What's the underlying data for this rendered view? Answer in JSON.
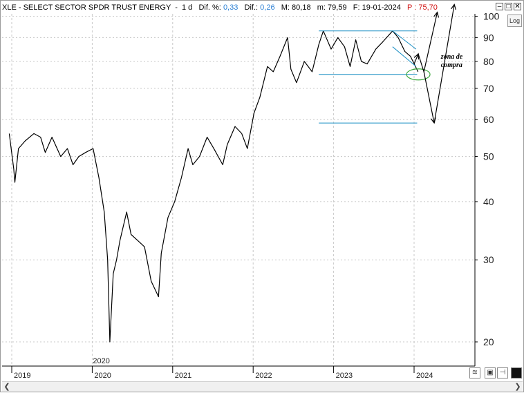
{
  "header": {
    "symbol": "XLE - SELECT SECTOR SPDR TRUST ENERGY",
    "period": "1 d",
    "dif_pct_label": "Dif. %:",
    "dif_pct_value": "0,33",
    "dif_label": "Dif.:",
    "dif_value": "0,26",
    "max_label": "M:",
    "max_value": "80,18",
    "min_label": "m:",
    "min_value": "79,59",
    "date_label": "F:",
    "date_value": "19-01-2024",
    "price_label": "P :",
    "price_value": "75,70"
  },
  "controls": {
    "log_label": "Log",
    "minimize": "–",
    "maximize": "□",
    "close": "✕"
  },
  "colors": {
    "price_line": "#000000",
    "channel": "#1a8fc4",
    "ellipse": "#3aa83a",
    "grid": "#c8c8c8"
  },
  "chart_data": {
    "type": "line",
    "title": "XLE - SELECT SECTOR SPDR TRUST ENERGY",
    "y_scale": "log",
    "ylim": [
      18,
      102
    ],
    "y_ticks": [
      20,
      30,
      40,
      50,
      60,
      70,
      80,
      90,
      100
    ],
    "x_ticks": [
      "2019",
      "2020",
      "2021",
      "2022",
      "2023",
      "2024"
    ],
    "x_range": [
      "2019-01",
      "2024-08"
    ],
    "series": [
      {
        "values": [
          {
            "x": "2018-12-20",
            "y": 56
          },
          {
            "x": "2019-01-10",
            "y": 47
          },
          {
            "x": "2019-01-15",
            "y": 44
          },
          {
            "x": "2019-02-01",
            "y": 52
          },
          {
            "x": "2019-03-01",
            "y": 54
          },
          {
            "x": "2019-04-10",
            "y": 56
          },
          {
            "x": "2019-05-10",
            "y": 55
          },
          {
            "x": "2019-06-01",
            "y": 51
          },
          {
            "x": "2019-07-01",
            "y": 55
          },
          {
            "x": "2019-08-10",
            "y": 50
          },
          {
            "x": "2019-09-10",
            "y": 52
          },
          {
            "x": "2019-10-05",
            "y": 48
          },
          {
            "x": "2019-11-01",
            "y": 50
          },
          {
            "x": "2019-12-01",
            "y": 51
          },
          {
            "x": "2020-01-05",
            "y": 52
          },
          {
            "x": "2020-02-01",
            "y": 45
          },
          {
            "x": "2020-02-25",
            "y": 38
          },
          {
            "x": "2020-03-10",
            "y": 30
          },
          {
            "x": "2020-03-20",
            "y": 20
          },
          {
            "x": "2020-04-05",
            "y": 28
          },
          {
            "x": "2020-04-20",
            "y": 30
          },
          {
            "x": "2020-05-05",
            "y": 33
          },
          {
            "x": "2020-06-05",
            "y": 38
          },
          {
            "x": "2020-06-25",
            "y": 34
          },
          {
            "x": "2020-07-25",
            "y": 33
          },
          {
            "x": "2020-08-25",
            "y": 32
          },
          {
            "x": "2020-09-25",
            "y": 27
          },
          {
            "x": "2020-10-28",
            "y": 25
          },
          {
            "x": "2020-11-10",
            "y": 31
          },
          {
            "x": "2020-12-10",
            "y": 37
          },
          {
            "x": "2021-01-10",
            "y": 40
          },
          {
            "x": "2021-02-10",
            "y": 45
          },
          {
            "x": "2021-03-10",
            "y": 52
          },
          {
            "x": "2021-04-01",
            "y": 48
          },
          {
            "x": "2021-05-01",
            "y": 50
          },
          {
            "x": "2021-06-05",
            "y": 55
          },
          {
            "x": "2021-07-05",
            "y": 52
          },
          {
            "x": "2021-08-15",
            "y": 48
          },
          {
            "x": "2021-09-05",
            "y": 53
          },
          {
            "x": "2021-10-10",
            "y": 58
          },
          {
            "x": "2021-11-10",
            "y": 56
          },
          {
            "x": "2021-12-05",
            "y": 52
          },
          {
            "x": "2022-01-05",
            "y": 62
          },
          {
            "x": "2022-02-01",
            "y": 67
          },
          {
            "x": "2022-03-05",
            "y": 78
          },
          {
            "x": "2022-04-01",
            "y": 76
          },
          {
            "x": "2022-05-01",
            "y": 82
          },
          {
            "x": "2022-06-05",
            "y": 90
          },
          {
            "x": "2022-06-20",
            "y": 77
          },
          {
            "x": "2022-07-15",
            "y": 72
          },
          {
            "x": "2022-08-20",
            "y": 80
          },
          {
            "x": "2022-09-25",
            "y": 76
          },
          {
            "x": "2022-10-25",
            "y": 87
          },
          {
            "x": "2022-11-15",
            "y": 93
          },
          {
            "x": "2022-12-20",
            "y": 85
          },
          {
            "x": "2023-01-20",
            "y": 90
          },
          {
            "x": "2023-02-20",
            "y": 86
          },
          {
            "x": "2023-03-15",
            "y": 78
          },
          {
            "x": "2023-04-10",
            "y": 89
          },
          {
            "x": "2023-05-05",
            "y": 80
          },
          {
            "x": "2023-06-01",
            "y": 79
          },
          {
            "x": "2023-07-10",
            "y": 85
          },
          {
            "x": "2023-08-10",
            "y": 88
          },
          {
            "x": "2023-09-25",
            "y": 93
          },
          {
            "x": "2023-10-20",
            "y": 90
          },
          {
            "x": "2023-11-20",
            "y": 84
          },
          {
            "x": "2023-12-15",
            "y": 82
          },
          {
            "x": "2024-01-19",
            "y": 76
          }
        ]
      }
    ],
    "annotations": [
      {
        "type": "hline",
        "y": 93,
        "from": "2022-10-25",
        "to": "2024-01-15",
        "color": "#1a8fc4"
      },
      {
        "type": "hline",
        "y": 75,
        "from": "2022-10-25",
        "to": "2024-01-15",
        "color": "#1a8fc4"
      },
      {
        "type": "hline",
        "y": 59,
        "from": "2022-10-25",
        "to": "2024-01-15",
        "color": "#1a8fc4"
      },
      {
        "type": "line",
        "points": [
          {
            "x": "2023-09-25",
            "y": 93
          },
          {
            "x": "2024-01-10",
            "y": 85
          }
        ],
        "color": "#1a8fc4"
      },
      {
        "type": "line",
        "points": [
          {
            "x": "2023-09-25",
            "y": 86
          },
          {
            "x": "2024-01-10",
            "y": 78
          }
        ],
        "color": "#1a8fc4"
      },
      {
        "type": "ellipse",
        "center": {
          "x": "2024-01-20",
          "y": 75
        },
        "color": "#3aa83a"
      },
      {
        "type": "arrow",
        "points": [
          {
            "x": "2024-01-01",
            "y": 79
          },
          {
            "x": "2024-01-20",
            "y": 83
          },
          {
            "x": "2024-02-15",
            "y": 76
          },
          {
            "x": "2024-04-15",
            "y": 102
          }
        ]
      },
      {
        "type": "arrow",
        "points": [
          {
            "x": "2024-02-15",
            "y": 76
          },
          {
            "x": "2024-04-01",
            "y": 59
          },
          {
            "x": "2024-07-01",
            "y": 106
          }
        ]
      },
      {
        "type": "text",
        "text": "zona de\ncompra",
        "x": "2024-05-01",
        "y": 81
      }
    ]
  }
}
